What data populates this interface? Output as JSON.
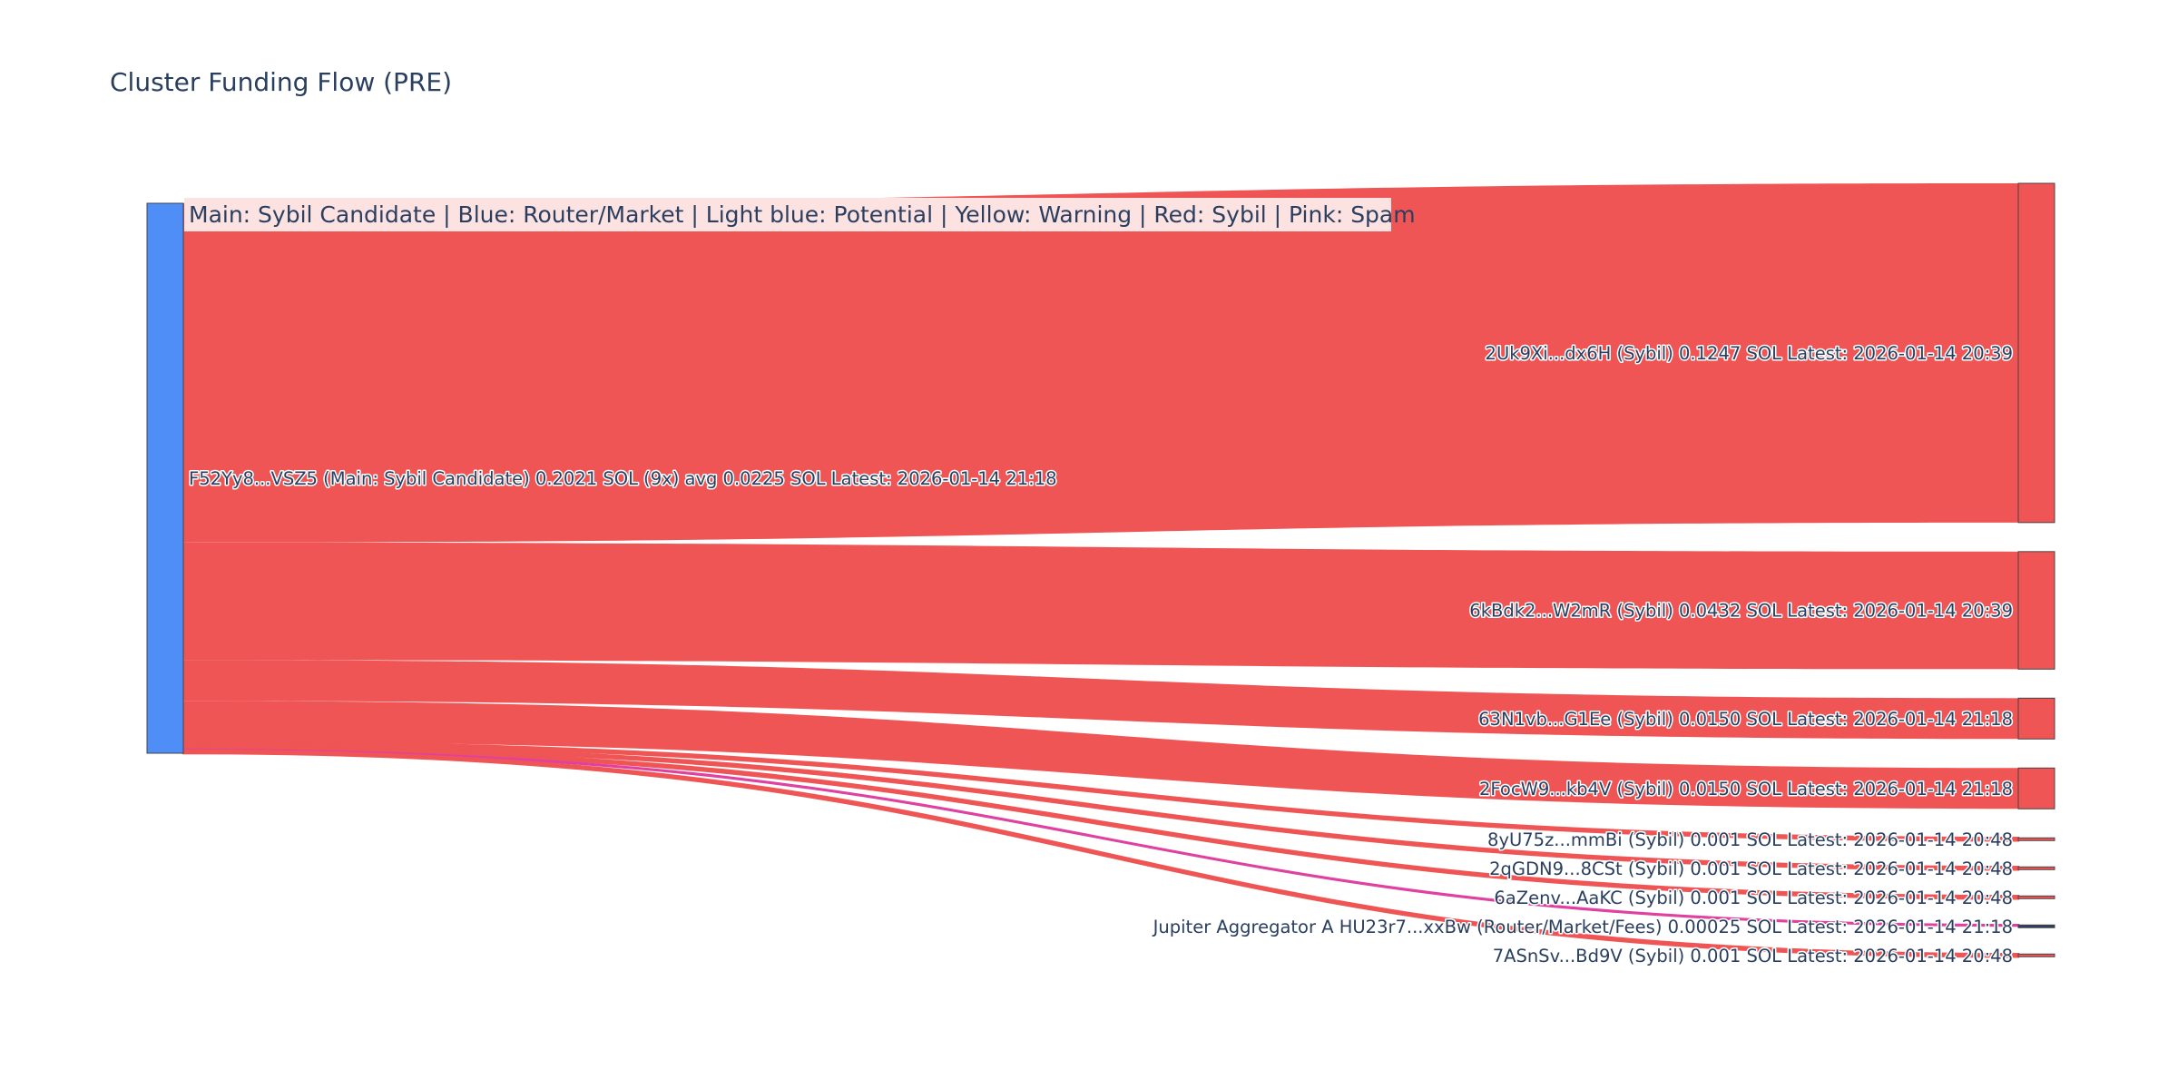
{
  "chart_data": {
    "type": "sankey",
    "title": "Cluster Funding Flow (PRE)",
    "legend_note": "Main: Sybil Candidate  |  Blue: Router/Market | Light blue: Potential | Yellow: Warning | Red: Sybil | Pink: Spam",
    "colors": {
      "main_node": "#4f8ef7",
      "sybil": "#ef5555",
      "spam": "#e0409f",
      "router": "#2a3f5f",
      "legend_bg": "#fde2e2"
    },
    "source": {
      "id": "F52Yy8...VSZ5",
      "label": "F52Yy8...VSZ5 (Main: Sybil Candidate) 0.2021 SOL (9x) avg 0.0225 SOL Latest: 2026-01-14 21:18"
    },
    "targets": [
      {
        "id": "2Uk9Xi...dx6H",
        "label": "2Uk9Xi...dx6H (Sybil) 0.1247 SOL Latest: 2026-01-14 20:39",
        "value": 0.1247,
        "category": "sybil"
      },
      {
        "id": "6kBdk2...W2mR",
        "label": "6kBdk2...W2mR (Sybil) 0.0432 SOL Latest: 2026-01-14 20:39",
        "value": 0.0432,
        "category": "sybil"
      },
      {
        "id": "63N1vb...G1Ee",
        "label": "63N1vb...G1Ee (Sybil) 0.0150 SOL Latest: 2026-01-14 21:18",
        "value": 0.015,
        "category": "sybil"
      },
      {
        "id": "2FocW9...kb4V",
        "label": "2FocW9...kb4V (Sybil) 0.0150 SOL Latest: 2026-01-14 21:18",
        "value": 0.015,
        "category": "sybil"
      },
      {
        "id": "8yU75z...mmBi",
        "label": "8yU75z...mmBi (Sybil) 0.001 SOL Latest: 2026-01-14 20:48",
        "value": 0.001,
        "category": "sybil"
      },
      {
        "id": "2qGDN9...8CSt",
        "label": "2qGDN9...8CSt (Sybil) 0.001 SOL Latest: 2026-01-14 20:48",
        "value": 0.001,
        "category": "sybil"
      },
      {
        "id": "6aZenv...AaKC",
        "label": "6aZenv...AaKC (Sybil) 0.001 SOL Latest: 2026-01-14 20:48",
        "value": 0.001,
        "category": "sybil"
      },
      {
        "id": "HU23r7...xxBw",
        "label": "Jupiter Aggregator A HU23r7...xxBw (Router/Market/Fees) 0.00025 SOL Latest: 2026-01-14 21:18",
        "value": 0.00025,
        "category": "router"
      },
      {
        "id": "7ASnSv...Bd9V",
        "label": "7ASnSv...Bd9V (Sybil) 0.001 SOL Latest: 2026-01-14 20:48",
        "value": 0.001,
        "category": "sybil"
      }
    ],
    "links": [
      {
        "source": "F52Yy8...VSZ5",
        "target": "2Uk9Xi...dx6H",
        "value": 0.1247,
        "color": "sybil"
      },
      {
        "source": "F52Yy8...VSZ5",
        "target": "6kBdk2...W2mR",
        "value": 0.0432,
        "color": "sybil"
      },
      {
        "source": "F52Yy8...VSZ5",
        "target": "63N1vb...G1Ee",
        "value": 0.015,
        "color": "sybil"
      },
      {
        "source": "F52Yy8...VSZ5",
        "target": "2FocW9...kb4V",
        "value": 0.015,
        "color": "sybil"
      },
      {
        "source": "F52Yy8...VSZ5",
        "target": "8yU75z...mmBi",
        "value": 0.001,
        "color": "sybil"
      },
      {
        "source": "F52Yy8...VSZ5",
        "target": "2qGDN9...8CSt",
        "value": 0.001,
        "color": "sybil"
      },
      {
        "source": "F52Yy8...VSZ5",
        "target": "6aZenv...AaKC",
        "value": 0.001,
        "color": "sybil"
      },
      {
        "source": "F52Yy8...VSZ5",
        "target": "HU23r7...xxBw",
        "value": 0.00025,
        "color": "spam"
      },
      {
        "source": "F52Yy8...VSZ5",
        "target": "7ASnSv...Bd9V",
        "value": 0.001,
        "color": "sybil"
      }
    ]
  }
}
